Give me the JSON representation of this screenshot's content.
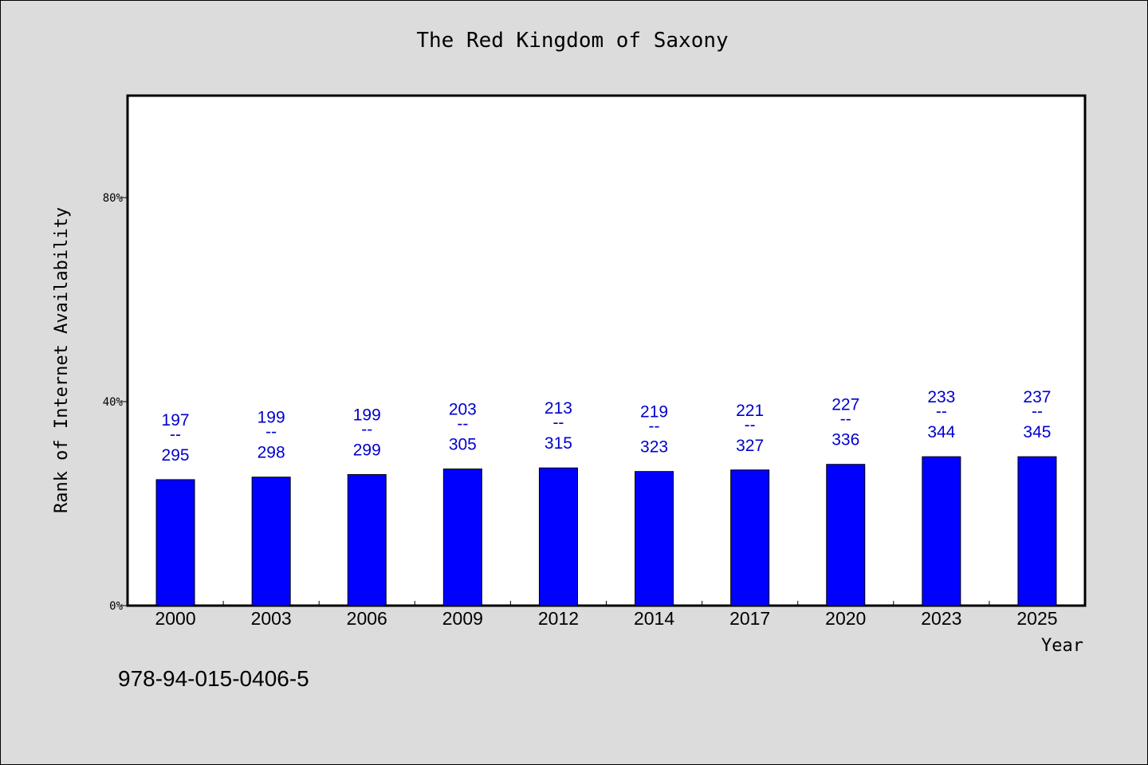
{
  "chart_data": {
    "type": "bar",
    "title": "The Red Kingdom of Saxony",
    "xlabel": "Year",
    "ylabel": "Rank of Internet Availability",
    "categories": [
      "2000",
      "2003",
      "2006",
      "2009",
      "2012",
      "2014",
      "2017",
      "2020",
      "2023",
      "2025"
    ],
    "series": [
      {
        "values": [
          24.7,
          25.2,
          25.7,
          26.8,
          27.0,
          26.3,
          26.6,
          27.7,
          29.2,
          29.2
        ]
      }
    ],
    "data_labels": [
      {
        "top": "197",
        "sep": "--",
        "bottom": "295"
      },
      {
        "top": "199",
        "sep": "--",
        "bottom": "298"
      },
      {
        "top": "199",
        "sep": "--",
        "bottom": "299"
      },
      {
        "top": "203",
        "sep": "--",
        "bottom": "305"
      },
      {
        "top": "213",
        "sep": "--",
        "bottom": "315"
      },
      {
        "top": "219",
        "sep": "--",
        "bottom": "323"
      },
      {
        "top": "221",
        "sep": "--",
        "bottom": "327"
      },
      {
        "top": "227",
        "sep": "--",
        "bottom": "336"
      },
      {
        "top": "233",
        "sep": "--",
        "bottom": "344"
      },
      {
        "top": "237",
        "sep": "--",
        "bottom": "345"
      }
    ],
    "yticks": [
      0,
      40,
      80
    ],
    "ytick_labels": [
      "0%",
      "40%",
      "80%"
    ],
    "ylim": [
      0,
      100
    ],
    "grid": false,
    "legend": "none",
    "colors": {
      "bar": "#0000ff",
      "label": "#0000cc",
      "background": "#dcdcdc",
      "plot_background": "#ffffff"
    }
  },
  "footer": {
    "isbn": "978-94-015-0406-5"
  }
}
